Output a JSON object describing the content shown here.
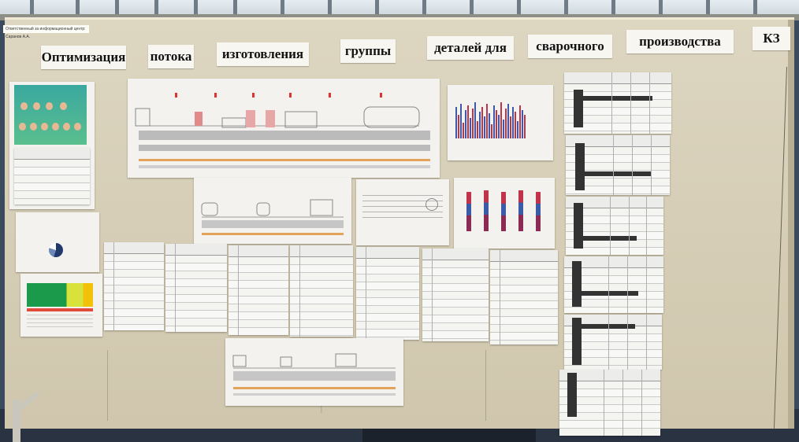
{
  "header_words": [
    "Оптимизация",
    "потока",
    "изготовления",
    "группы",
    "деталей для",
    "сварочного",
    "производства",
    "КЗ"
  ],
  "header_tag": "Ответственный за информационный центр: Саранов А.А.",
  "colors": {
    "board": "#d8d0b8",
    "paper": "#f3f2ee",
    "chart_blue": "#3b5aa8",
    "chart_red": "#c0334a",
    "team_bg": "#42ad97"
  }
}
